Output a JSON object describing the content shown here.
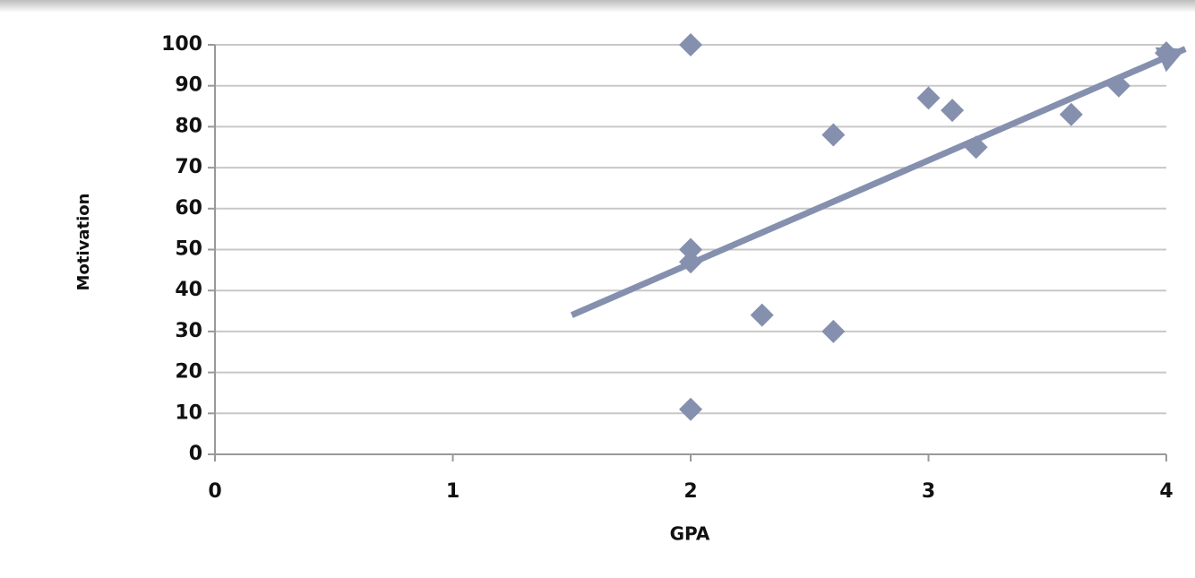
{
  "chart_data": {
    "type": "scatter",
    "x_label": "GPA",
    "y_label": "Motivation",
    "x": [
      2,
      2,
      2,
      2,
      2.3,
      2.6,
      2.6,
      3,
      3.1,
      3.2,
      3.6,
      3.8,
      4
    ],
    "values": [
      100,
      11,
      50,
      47,
      34,
      78,
      30,
      87,
      84,
      75,
      83,
      90,
      98
    ],
    "color": "#8590ae",
    "trendline": {
      "x": [
        1.5,
        4.08
      ],
      "y": [
        34,
        99
      ]
    },
    "xlim": [
      0,
      4
    ],
    "xticks": [
      0,
      1,
      2,
      3,
      4
    ],
    "ylim": [
      0,
      100
    ],
    "yticks": [
      0,
      10,
      20,
      30,
      40,
      50,
      60,
      70,
      80,
      90,
      100
    ],
    "grid": true
  }
}
